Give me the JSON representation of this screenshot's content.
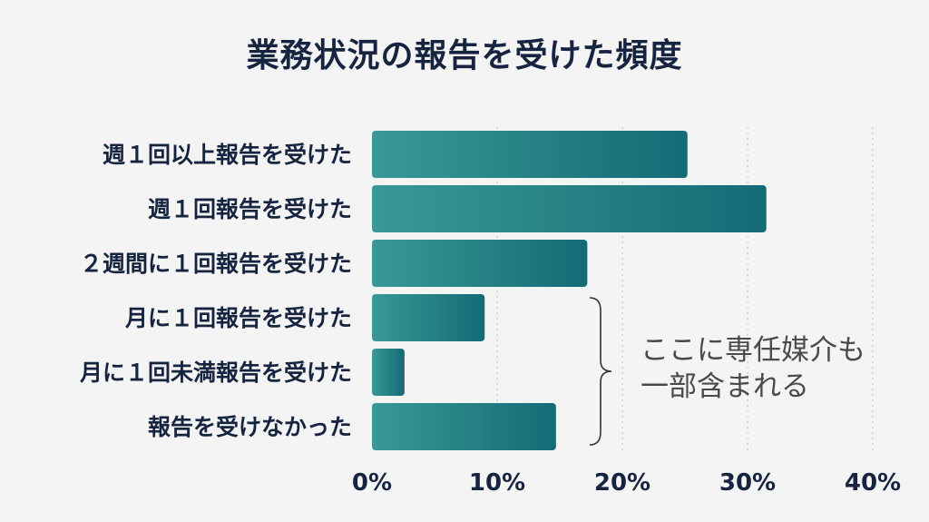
{
  "chart_data": {
    "type": "bar",
    "orientation": "horizontal",
    "title": "業務状況の報告を受けた頻度",
    "categories": [
      "週１回以上報告を受けた",
      "週１回報告を受けた",
      "２週間に１回報告を受けた",
      "月に１回報告を受けた",
      "月に１回未満報告を受けた",
      "報告を受けなかった"
    ],
    "values": [
      25.2,
      31.5,
      17.2,
      9.0,
      2.6,
      14.7
    ],
    "xlim": [
      0,
      40
    ],
    "xticks": [
      0,
      10,
      20,
      30,
      40
    ],
    "xtick_labels": [
      "0%",
      "10%",
      "20%",
      "30%",
      "40%"
    ],
    "grid": "vertical dotted",
    "bar_color_start": "#3a9896",
    "bar_color_end": "#146b76",
    "annotation": {
      "lines": [
        "ここに専任媒介も",
        "一部含まれる"
      ],
      "brace_spans_categories": [
        3,
        5
      ]
    }
  }
}
